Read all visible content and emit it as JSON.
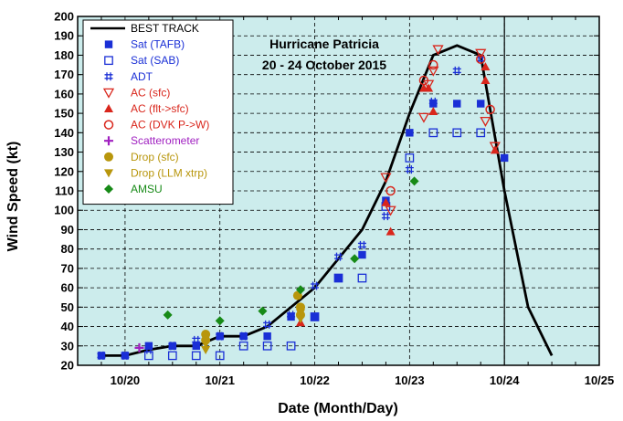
{
  "chart_data": {
    "type": "scatter",
    "title": "Hurricane Patricia",
    "subtitle": "20 - 24 October 2015",
    "xlabel": "Date (Month/Day)",
    "ylabel": "Wind Speed (kt)",
    "xlim": [
      19.5,
      25.0
    ],
    "ylim": [
      20,
      200
    ],
    "grid": true,
    "legend_position": "top-left",
    "x_ticks": [
      {
        "value": 20,
        "label": "10/20"
      },
      {
        "value": 21,
        "label": "10/21"
      },
      {
        "value": 22,
        "label": "10/22"
      },
      {
        "value": 23,
        "label": "10/23"
      },
      {
        "value": 24,
        "label": "10/24"
      },
      {
        "value": 25,
        "label": "10/25"
      }
    ],
    "y_ticks": [
      20,
      30,
      40,
      50,
      60,
      70,
      80,
      90,
      100,
      110,
      120,
      130,
      140,
      150,
      160,
      170,
      180,
      190,
      200
    ],
    "vertical_marker_x": 24.0,
    "best_track": {
      "name": "BEST TRACK",
      "color": "#000000",
      "x": [
        19.75,
        20.0,
        20.25,
        20.5,
        20.75,
        21.0,
        21.25,
        21.5,
        21.75,
        22.0,
        22.25,
        22.5,
        22.75,
        23.0,
        23.25,
        23.5,
        23.75,
        24.0,
        24.25,
        24.5
      ],
      "y": [
        25,
        25,
        28,
        30,
        30,
        35,
        35,
        40,
        50,
        60,
        75,
        90,
        115,
        150,
        180,
        185,
        180,
        110,
        50,
        25
      ]
    },
    "series": [
      {
        "name": "Sat (TAFB)",
        "marker": "filled-square",
        "color": "#1a2fd6",
        "x": [
          19.75,
          20.0,
          20.25,
          20.5,
          20.75,
          21.0,
          21.25,
          21.5,
          21.75,
          22.0,
          22.25,
          22.5,
          22.75,
          23.0,
          23.25,
          23.5,
          23.75,
          24.0
        ],
        "y": [
          25,
          25,
          30,
          30,
          30,
          35,
          35,
          35,
          45,
          45,
          65,
          77,
          105,
          140,
          155,
          155,
          155,
          127
        ]
      },
      {
        "name": "Sat (SAB)",
        "marker": "open-square",
        "color": "#1a2fd6",
        "x": [
          20.25,
          20.5,
          20.75,
          21.0,
          21.25,
          21.5,
          21.75,
          22.0,
          22.25,
          22.5,
          22.75,
          23.0,
          23.25,
          23.5,
          23.75
        ],
        "y": [
          25,
          25,
          25,
          25,
          30,
          30,
          30,
          45,
          65,
          65,
          102,
          127,
          140,
          140,
          140
        ]
      },
      {
        "name": "ADT",
        "marker": "hash",
        "color": "#1a2fd6",
        "x": [
          19.75,
          20.0,
          20.25,
          20.5,
          20.75,
          21.0,
          21.25,
          21.5,
          21.75,
          22.0,
          22.25,
          22.5,
          22.75,
          23.0,
          23.25,
          23.5,
          23.75
        ],
        "y": [
          25,
          25,
          28,
          30,
          33,
          35,
          35,
          41,
          46,
          61,
          76,
          82,
          97,
          121,
          156,
          172,
          178
        ]
      },
      {
        "name": "AC (sfc)",
        "marker": "open-triangle-down",
        "color": "#d9261c",
        "x": [
          22.75,
          22.8,
          23.15,
          23.2,
          23.25,
          23.3,
          23.75,
          23.8,
          23.9
        ],
        "y": [
          117,
          100,
          148,
          165,
          172,
          183,
          181,
          146,
          133
        ]
      },
      {
        "name": "AC (flt->sfc)",
        "marker": "filled-triangle-up",
        "color": "#d9261c",
        "x": [
          21.85,
          22.75,
          22.8,
          23.15,
          23.2,
          23.25,
          23.8,
          23.8,
          23.9
        ],
        "y": [
          42,
          104,
          89,
          163,
          163,
          151,
          174,
          167,
          131
        ]
      },
      {
        "name": "AC (DVK P->W)",
        "marker": "open-circle",
        "color": "#d9261c",
        "x": [
          22.8,
          23.15,
          23.25,
          23.75,
          23.85
        ],
        "y": [
          110,
          167,
          175,
          178,
          152
        ]
      },
      {
        "name": "Scatterometer",
        "marker": "plus",
        "color": "#a020c0",
        "x": [
          20.15
        ],
        "y": [
          29
        ]
      },
      {
        "name": "Drop (sfc)",
        "marker": "filled-circle",
        "color": "#b8960c",
        "x": [
          20.85,
          20.85,
          21.82,
          21.85,
          21.85
        ],
        "y": [
          33,
          36,
          56,
          50,
          46
        ]
      },
      {
        "name": "Drop (LLM xtrp)",
        "marker": "filled-triangle-down",
        "color": "#b8960c",
        "x": [
          20.85,
          20.85,
          21.85,
          21.85
        ],
        "y": [
          28,
          31,
          47,
          44
        ]
      },
      {
        "name": "AMSU",
        "marker": "diamond",
        "color": "#178a17",
        "x": [
          20.45,
          21.0,
          21.45,
          21.85,
          22.42,
          23.05
        ],
        "y": [
          46,
          43,
          48,
          59,
          75,
          115
        ]
      }
    ]
  }
}
